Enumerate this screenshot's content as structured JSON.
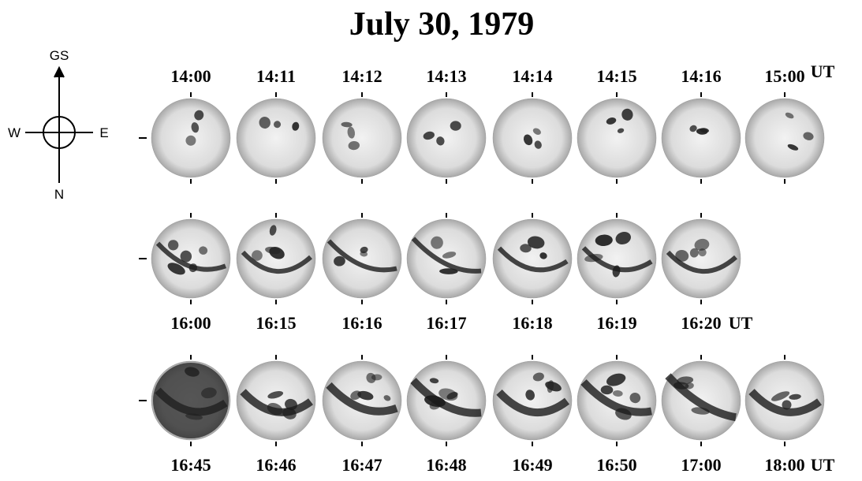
{
  "title": "July 30, 1979",
  "compass": {
    "up": "GS",
    "left": "W",
    "right": "E",
    "down": "N"
  },
  "rows": [
    {
      "times": [
        "14:00",
        "14:11",
        "14:12",
        "14:13",
        "14:14",
        "14:15",
        "14:16",
        "15:00"
      ],
      "unit": "UT"
    },
    {
      "times": [
        "16:00",
        "16:15",
        "16:16",
        "16:17",
        "16:18",
        "16:19",
        "16:20"
      ],
      "unit": "UT"
    },
    {
      "times": [
        "16:45",
        "16:46",
        "16:47",
        "16:48",
        "16:49",
        "16:50",
        "17:00",
        "18:00"
      ],
      "unit": "UT"
    }
  ]
}
